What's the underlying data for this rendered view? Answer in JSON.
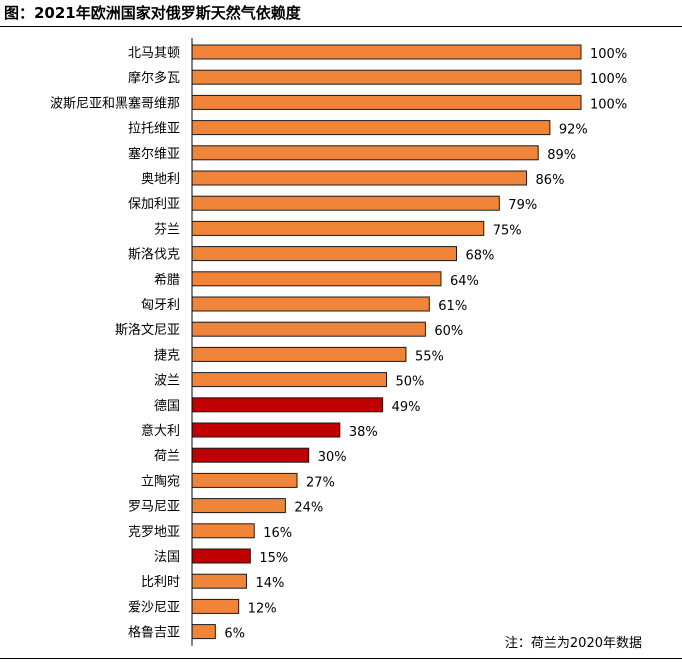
{
  "title": "图：2021年欧洲国家对俄罗斯天然气依赖度",
  "note": "注：荷兰为2020年数据",
  "colors": {
    "default": "#F0853A",
    "highlight": "#C00000",
    "stroke": "#1a1a1a"
  },
  "chart_data": {
    "type": "bar",
    "orientation": "horizontal",
    "title": "图：2021年欧洲国家对俄罗斯天然气依赖度",
    "xlim": [
      0,
      100
    ],
    "value_suffix": "%",
    "categories": [
      "北马其顿",
      "摩尔多瓦",
      "波斯尼亚和黑塞哥维那",
      "拉托维亚",
      "塞尔维亚",
      "奥地利",
      "保加利亚",
      "芬兰",
      "斯洛伐克",
      "希腊",
      "匈牙利",
      "斯洛文尼亚",
      "捷克",
      "波兰",
      "德国",
      "意大利",
      "荷兰",
      "立陶宛",
      "罗马尼亚",
      "克罗地亚",
      "法国",
      "比利时",
      "爱沙尼亚",
      "格鲁吉亚"
    ],
    "values": [
      100,
      100,
      100,
      92,
      89,
      86,
      79,
      75,
      68,
      64,
      61,
      60,
      55,
      50,
      49,
      38,
      30,
      27,
      24,
      16,
      15,
      14,
      12,
      6
    ],
    "highlighted": [
      "德国",
      "意大利",
      "荷兰",
      "法国"
    ],
    "data_labels": [
      "100%",
      "100%",
      "100%",
      "92%",
      "89%",
      "86%",
      "79%",
      "75%",
      "68%",
      "64%",
      "61%",
      "60%",
      "55%",
      "50%",
      "49%",
      "38%",
      "30%",
      "27%",
      "24%",
      "16%",
      "15%",
      "14%",
      "12%",
      "6%"
    ]
  }
}
